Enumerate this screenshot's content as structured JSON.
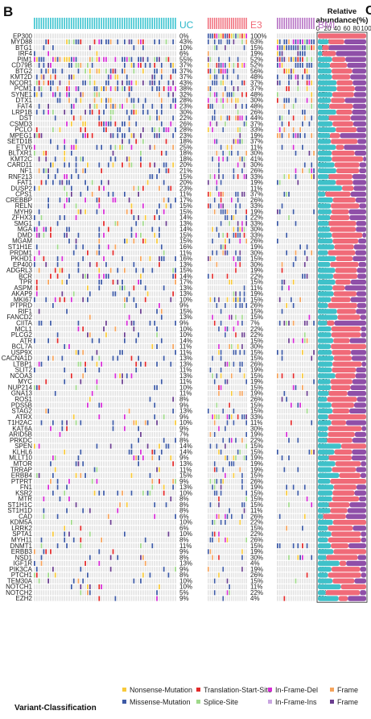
{
  "figure": {
    "panel_letter": "B",
    "corner_letter": "C",
    "abundance_header": [
      "Relative",
      "abundance(%)"
    ],
    "abundance_ticks": [
      "0",
      "20",
      "40",
      "60",
      "80",
      "100"
    ]
  },
  "chart_data": {
    "type": "heatmap",
    "groups": [
      {
        "name": "UC",
        "label_color": "#29b6c8",
        "bar_color": "#39c3cf"
      },
      {
        "name": "E3",
        "label_color": "#f06a78",
        "bar_color": "#f06a78"
      },
      {
        "name": "BMI",
        "label_color": "#b56fc3",
        "bar_color": "#b56fc3"
      }
    ],
    "genes": [
      "EP300",
      "MYD88",
      "BTG1",
      "IRF4",
      "PIM1",
      "CD79B",
      "BTG2",
      "KMT2D",
      "NCOR1",
      "PCM1",
      "SYNE1",
      "DTX1",
      "FAT4",
      "LRP1B",
      "DST",
      "CSMD3",
      "PCLO",
      "MPEG1",
      "SETD1B",
      "ETV6",
      "BLTXR1",
      "KMT2C",
      "CARD11",
      "NF1",
      "RNF213",
      "FAT1",
      "DUSP2",
      "CPS1",
      "CREBBP",
      "RELN",
      "MYH9",
      "ZFHX3",
      "SMG1",
      "MGA",
      "DMD",
      "MGAM",
      "ST1H1E",
      "PRDM1",
      "PKHD1",
      "EP400",
      "ADGRL3",
      "BCR",
      "TPR",
      "ASPM",
      "AKAP9",
      "MKI67",
      "PTPRD",
      "RIF1",
      "FANCD2",
      "CIITA",
      "MCL1",
      "PLCG2",
      "ATR",
      "BCL7A",
      "USP9X",
      "CACNA1D",
      "LTBP1",
      "SLIT2",
      "NCOA3",
      "MYC",
      "NUP214",
      "GNA13",
      "ROS1",
      "PDS5B",
      "STAG2",
      "ATRX",
      "T1H2AC",
      "KAT6A",
      "ARID5B",
      "PRKDC",
      "SPEN",
      "KLHL6",
      "MLLT10",
      "MTOR",
      "TRRAP",
      "ERBB4",
      "PTPRT",
      "FN1",
      "KSR2",
      "MTR",
      "ST1H1C",
      "ST1H1D",
      "CAD",
      "KDM5A",
      "LRRK2",
      "SPTA1",
      "MYH11",
      "DNMT1",
      "ERBB3",
      "NSD1",
      "IGF1R",
      "PIK3CA",
      "PTCH1",
      "TEM30A",
      "NOTCH1",
      "NOTCH2",
      "EZH2"
    ],
    "uc_pct": [
      "0%",
      "43%",
      "10%",
      "6%",
      "55%",
      "37%",
      "37%",
      "37%",
      "43%",
      "38%",
      "32%",
      "28%",
      "23%",
      "30%",
      "22%",
      "26%",
      "28%",
      "23%",
      "18%",
      "25%",
      "18%",
      "18%",
      "20%",
      "21%",
      "15%",
      "20%",
      "23%",
      "11%",
      "17%",
      "15%",
      "15%",
      "14%",
      "13%",
      "14%",
      "15%",
      "15%",
      "16%",
      "11%",
      "16%",
      "13%",
      "15%",
      "14%",
      "17%",
      "13%",
      "13%",
      "10%",
      "9%",
      "15%",
      "13%",
      "9%",
      "10%",
      "10%",
      "14%",
      "11%",
      "11%",
      "13%",
      "13%",
      "11%",
      "13%",
      "11%",
      "10%",
      "11%",
      "8%",
      "9%",
      "13%",
      "9%",
      "10%",
      "9%",
      "7%",
      "8%",
      "14%",
      "14%",
      "9%",
      "13%",
      "11%",
      "15%",
      "9%",
      "13%",
      "10%",
      "8%",
      "8%",
      "8%",
      "6%",
      "10%",
      "6%",
      "10%",
      "8%",
      "11%",
      "9%",
      "8%",
      "13%",
      "9%",
      "8%",
      "10%",
      "10%",
      "5%",
      "9%"
    ],
    "e3_pct": [
      "100%",
      "63%",
      "15%",
      "19%",
      "52%",
      "52%",
      "56%",
      "48%",
      "37%",
      "37%",
      "48%",
      "30%",
      "48%",
      "26%",
      "44%",
      "37%",
      "33%",
      "19%",
      "37%",
      "11%",
      "30%",
      "41%",
      "30%",
      "26%",
      "33%",
      "19%",
      "11%",
      "37%",
      "26%",
      "33%",
      "19%",
      "22%",
      "33%",
      "30%",
      "33%",
      "26%",
      "19%",
      "30%",
      "15%",
      "30%",
      "19%",
      "22%",
      "15%",
      "11%",
      "19%",
      "15%",
      "26%",
      "15%",
      "15%",
      "7%",
      "22%",
      "22%",
      "15%",
      "30%",
      "15%",
      "15%",
      "26%",
      "19%",
      "15%",
      "19%",
      "15%",
      "19%",
      "26%",
      "15%",
      "15%",
      "33%",
      "11%",
      "30%",
      "19%",
      "22%",
      "15%",
      "15%",
      "19%",
      "19%",
      "19%",
      "15%",
      "26%",
      "19%",
      "15%",
      "15%",
      "15%",
      "11%",
      "26%",
      "22%",
      "15%",
      "22%",
      "26%",
      "15%",
      "19%",
      "30%",
      "4%",
      "19%",
      "26%",
      "15%",
      "11%",
      "22%",
      "4%"
    ],
    "bmi_pct": [
      "0%",
      "88%",
      "85%",
      "42%",
      "81%",
      "58%",
      "38%",
      "42%",
      "31%",
      "23%",
      "27%",
      "46%",
      "27%",
      "23%",
      "31%",
      "23%",
      "15%",
      "50%",
      "12%",
      "31%",
      "15%",
      "4%",
      "8%",
      "8%",
      "19%",
      "15%",
      "12%",
      "23%",
      "12%",
      "8%",
      "19%",
      "19%",
      "12%",
      "12%",
      "4%",
      "8%",
      "12%",
      "12%",
      "12%",
      "8%",
      "8%",
      "8%",
      "15%",
      "19%",
      "8%",
      "12%",
      "8%",
      "8%",
      "4%",
      "31%",
      "4%",
      "4%",
      "15%",
      "0%",
      "12%",
      "12%",
      "4%",
      "8%",
      "8%",
      "12%",
      "12%",
      "19%",
      "8%",
      "8%",
      "15%",
      "0%",
      "15%",
      "4%",
      "8%",
      "12%",
      "0%",
      "12%",
      "12%",
      "4%",
      "8%",
      "4%",
      "0%",
      "8%",
      "8%",
      "4%",
      "12%",
      "12%",
      "23%",
      "0%",
      "8%",
      "4%",
      "4%",
      "15%",
      "0%",
      "8%",
      "12%",
      "4%",
      "4%",
      "8%",
      "0%",
      "4%",
      "8%"
    ],
    "legend": {
      "title": "Variant-Classification",
      "items": [
        {
          "label": "Nonsense-Mutation",
          "color": "#f7c93a"
        },
        {
          "label": "Missense-Mutation",
          "color": "#3d5aa6"
        },
        {
          "label": "Translation-Start-Site",
          "color": "#e32a2a"
        },
        {
          "label": "Splice-Site",
          "color": "#9fd98a"
        },
        {
          "label": "In-Frame-Del",
          "color": "#d62bd6"
        },
        {
          "label": "In-Frame-Ins",
          "color": "#c9a6e0"
        },
        {
          "label": "Frame",
          "color": "#f5a35b"
        },
        {
          "label": "Frame",
          "color": "#6a3d8f"
        }
      ]
    },
    "abundance_colors": [
      "#3fc1c9",
      "#f06a78",
      "#8f4fa8"
    ]
  }
}
